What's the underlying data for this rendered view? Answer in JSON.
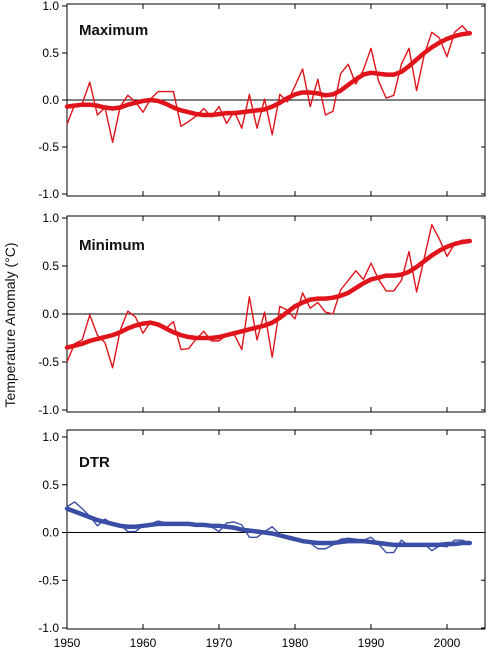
{
  "chart_data": {
    "type": "line",
    "ylabel": "Temperature Anomaly  (°C)",
    "xlim": [
      1950,
      2005
    ],
    "xticks": [
      1950,
      1960,
      1970,
      1980,
      1990,
      2000
    ],
    "ylim": [
      -1.0,
      1.0
    ],
    "yticks": [
      -1.0,
      -0.5,
      0.0,
      0.5,
      1.0
    ],
    "ytick_labels": [
      "-1.0",
      "-0.5",
      "0.0",
      "0.5",
      "1.0"
    ],
    "zero_line": true,
    "grid": false,
    "panels": [
      {
        "title": "Maximum",
        "color": "#e0141b",
        "x": [
          1950,
          1951,
          1952,
          1953,
          1954,
          1955,
          1956,
          1957,
          1958,
          1959,
          1960,
          1961,
          1962,
          1963,
          1964,
          1965,
          1966,
          1967,
          1968,
          1969,
          1970,
          1971,
          1972,
          1973,
          1974,
          1975,
          1976,
          1977,
          1978,
          1979,
          1980,
          1981,
          1982,
          1983,
          1984,
          1985,
          1986,
          1987,
          1988,
          1989,
          1990,
          1991,
          1992,
          1993,
          1994,
          1995,
          1996,
          1997,
          1998,
          1999,
          2000,
          2001,
          2002,
          2003
        ],
        "annual": [
          -0.26,
          -0.05,
          -0.04,
          0.19,
          -0.16,
          -0.08,
          -0.45,
          -0.07,
          0.05,
          -0.02,
          -0.13,
          0.01,
          0.09,
          0.09,
          0.09,
          -0.28,
          -0.23,
          -0.17,
          -0.09,
          -0.18,
          -0.07,
          -0.25,
          -0.12,
          -0.3,
          0.06,
          -0.3,
          0.01,
          -0.37,
          0.06,
          -0.02,
          0.15,
          0.33,
          -0.07,
          0.22,
          -0.16,
          -0.12,
          0.28,
          0.38,
          0.17,
          0.32,
          0.55,
          0.2,
          0.02,
          0.05,
          0.38,
          0.55,
          0.1,
          0.48,
          0.72,
          0.66,
          0.46,
          0.72,
          0.79,
          0.7
        ],
        "smoothed": [
          -0.07,
          -0.06,
          -0.05,
          -0.05,
          -0.06,
          -0.08,
          -0.09,
          -0.08,
          -0.05,
          -0.03,
          -0.01,
          0.0,
          -0.01,
          -0.04,
          -0.08,
          -0.11,
          -0.13,
          -0.15,
          -0.16,
          -0.16,
          -0.15,
          -0.14,
          -0.14,
          -0.13,
          -0.12,
          -0.11,
          -0.1,
          -0.07,
          -0.03,
          0.02,
          0.06,
          0.08,
          0.08,
          0.07,
          0.05,
          0.06,
          0.1,
          0.16,
          0.22,
          0.27,
          0.29,
          0.28,
          0.27,
          0.27,
          0.3,
          0.36,
          0.43,
          0.5,
          0.56,
          0.61,
          0.65,
          0.68,
          0.7,
          0.71
        ]
      },
      {
        "title": "Minimum",
        "color": "#e0141b",
        "x": [
          1950,
          1951,
          1952,
          1953,
          1954,
          1955,
          1956,
          1957,
          1958,
          1959,
          1960,
          1961,
          1962,
          1963,
          1964,
          1965,
          1966,
          1967,
          1968,
          1969,
          1970,
          1971,
          1972,
          1973,
          1974,
          1975,
          1976,
          1977,
          1978,
          1979,
          1980,
          1981,
          1982,
          1983,
          1984,
          1985,
          1986,
          1987,
          1988,
          1989,
          1990,
          1991,
          1992,
          1993,
          1994,
          1995,
          1996,
          1997,
          1998,
          1999,
          2000,
          2001,
          2002,
          2003
        ],
        "annual": [
          -0.5,
          -0.31,
          -0.27,
          -0.01,
          -0.22,
          -0.3,
          -0.56,
          -0.17,
          0.03,
          -0.03,
          -0.2,
          -0.08,
          -0.1,
          -0.15,
          -0.08,
          -0.37,
          -0.36,
          -0.26,
          -0.18,
          -0.28,
          -0.28,
          -0.22,
          -0.21,
          -0.37,
          0.18,
          -0.27,
          0.02,
          -0.45,
          0.08,
          0.04,
          -0.05,
          0.22,
          0.06,
          0.12,
          0.02,
          0.0,
          0.25,
          0.35,
          0.45,
          0.36,
          0.53,
          0.36,
          0.24,
          0.24,
          0.35,
          0.65,
          0.23,
          0.58,
          0.93,
          0.78,
          0.6,
          0.73,
          0.77,
          0.75
        ],
        "smoothed": [
          -0.35,
          -0.33,
          -0.31,
          -0.28,
          -0.26,
          -0.24,
          -0.22,
          -0.19,
          -0.15,
          -0.12,
          -0.1,
          -0.09,
          -0.11,
          -0.15,
          -0.19,
          -0.22,
          -0.24,
          -0.25,
          -0.25,
          -0.25,
          -0.24,
          -0.22,
          -0.2,
          -0.18,
          -0.16,
          -0.14,
          -0.12,
          -0.09,
          -0.04,
          0.02,
          0.08,
          0.12,
          0.15,
          0.16,
          0.16,
          0.17,
          0.19,
          0.22,
          0.27,
          0.32,
          0.36,
          0.38,
          0.4,
          0.4,
          0.41,
          0.44,
          0.49,
          0.55,
          0.61,
          0.66,
          0.7,
          0.73,
          0.75,
          0.76
        ]
      },
      {
        "title": "DTR",
        "color": "#3b4ea6",
        "x": [
          1950,
          1951,
          1952,
          1953,
          1954,
          1955,
          1956,
          1957,
          1958,
          1959,
          1960,
          1961,
          1962,
          1963,
          1964,
          1965,
          1966,
          1967,
          1968,
          1969,
          1970,
          1971,
          1972,
          1973,
          1974,
          1975,
          1976,
          1977,
          1978,
          1979,
          1980,
          1981,
          1982,
          1983,
          1984,
          1985,
          1986,
          1987,
          1988,
          1989,
          1990,
          1991,
          1992,
          1993,
          1994,
          1995,
          1996,
          1997,
          1998,
          1999,
          2000,
          2001,
          2002,
          2003
        ],
        "annual": [
          0.27,
          0.32,
          0.25,
          0.17,
          0.07,
          0.14,
          0.09,
          0.08,
          0.01,
          0.01,
          0.07,
          0.09,
          0.12,
          0.1,
          0.09,
          0.08,
          0.1,
          0.08,
          0.09,
          0.06,
          0.01,
          0.1,
          0.11,
          0.08,
          -0.05,
          -0.05,
          0.01,
          0.06,
          -0.02,
          -0.04,
          -0.08,
          -0.08,
          -0.11,
          -0.17,
          -0.17,
          -0.13,
          -0.07,
          -0.06,
          -0.07,
          -0.08,
          -0.05,
          -0.12,
          -0.21,
          -0.21,
          -0.08,
          -0.14,
          -0.12,
          -0.12,
          -0.19,
          -0.14,
          -0.15,
          -0.08,
          -0.08,
          -0.11
        ],
        "smoothed": [
          0.25,
          0.22,
          0.19,
          0.16,
          0.13,
          0.11,
          0.09,
          0.07,
          0.06,
          0.06,
          0.07,
          0.08,
          0.09,
          0.09,
          0.09,
          0.09,
          0.09,
          0.08,
          0.08,
          0.07,
          0.07,
          0.06,
          0.05,
          0.03,
          0.02,
          0.01,
          0.0,
          -0.01,
          -0.03,
          -0.05,
          -0.07,
          -0.09,
          -0.1,
          -0.11,
          -0.11,
          -0.11,
          -0.1,
          -0.09,
          -0.09,
          -0.09,
          -0.1,
          -0.11,
          -0.12,
          -0.13,
          -0.13,
          -0.13,
          -0.13,
          -0.13,
          -0.13,
          -0.13,
          -0.12,
          -0.12,
          -0.11,
          -0.11
        ]
      }
    ]
  }
}
